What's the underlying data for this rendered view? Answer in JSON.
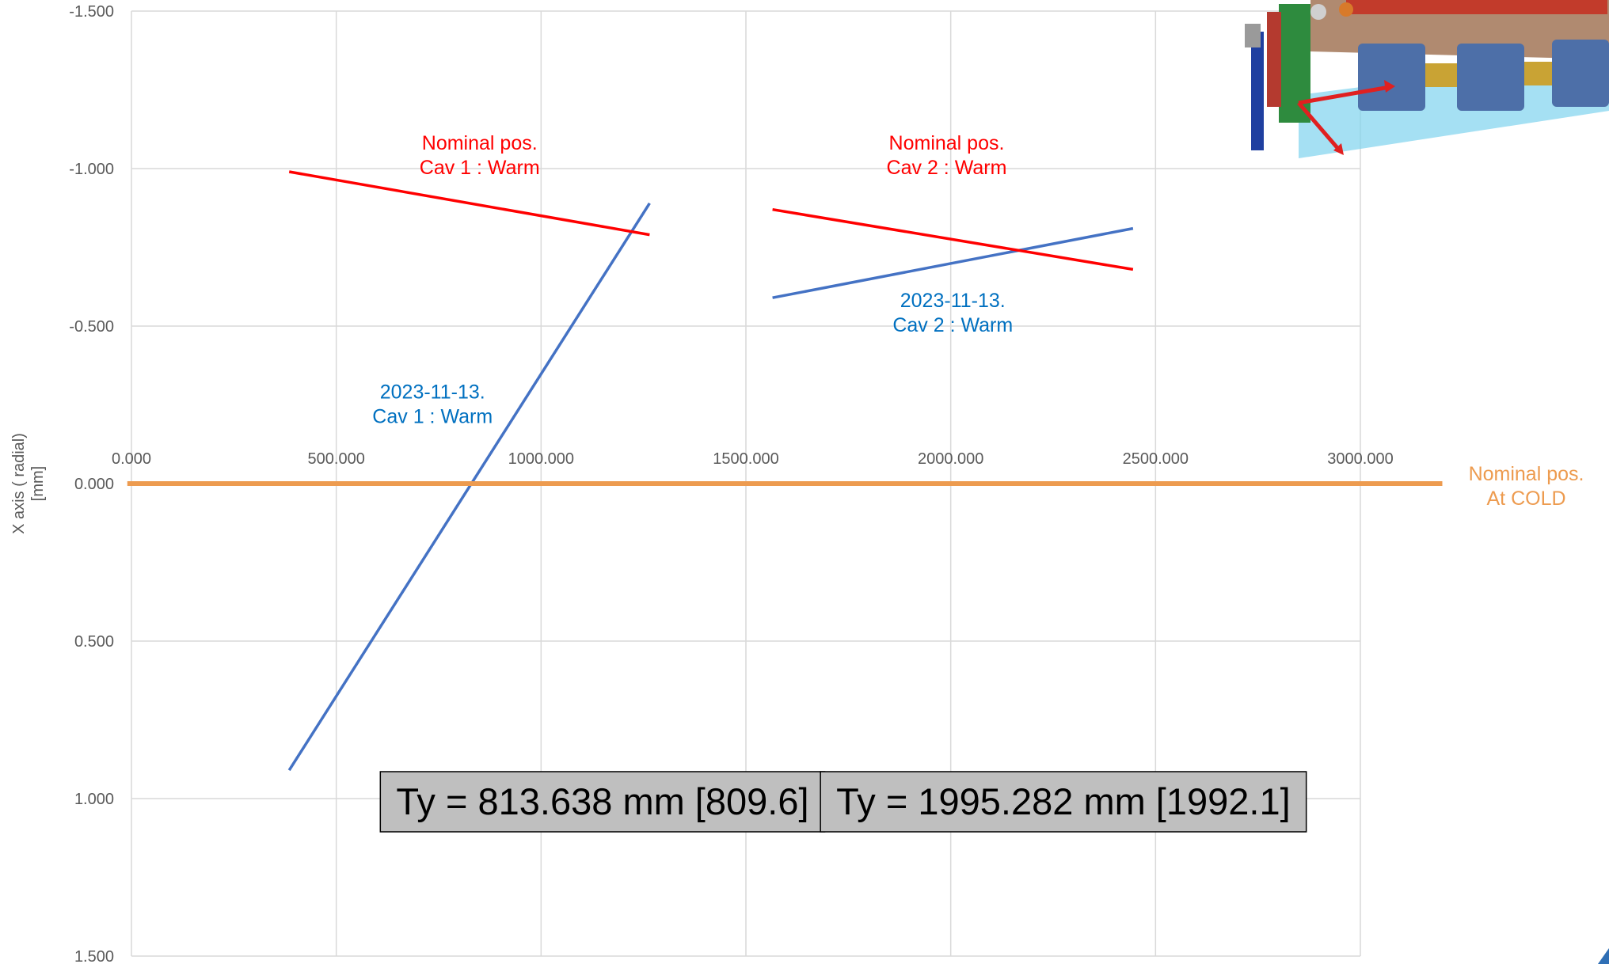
{
  "chart_data": {
    "type": "line",
    "title": "",
    "xlabel": "",
    "ylabel": "X axis ( radial)\n[mm]",
    "xlim": [
      0,
      3000
    ],
    "ylim": [
      1.5,
      -1.5
    ],
    "y_reversed": true,
    "grid": true,
    "legend": "none",
    "x_ticks": [
      "0.000",
      "500.000",
      "1000.000",
      "1500.000",
      "2000.000",
      "2500.000",
      "3000.000"
    ],
    "y_ticks": [
      "-1.500",
      "-1.000",
      "-0.500",
      "0.000",
      "0.500",
      "1.000",
      "1.500"
    ],
    "y_tick_values": [
      -1.5,
      -1.0,
      -0.5,
      0.0,
      0.5,
      1.0,
      1.5
    ],
    "x_tick_values": [
      0,
      500,
      1000,
      1500,
      2000,
      2500,
      3000
    ],
    "series": [
      {
        "color": "#4472C4",
        "points": [
          [
            385,
            0.91
          ],
          [
            1265,
            -0.89
          ]
        ]
      },
      {
        "color": "#4472C4",
        "points": [
          [
            1565,
            -0.59
          ],
          [
            2445,
            -0.81
          ]
        ]
      },
      {
        "color": "#FF0000",
        "points": [
          [
            385,
            -0.99
          ],
          [
            1265,
            -0.79
          ]
        ]
      },
      {
        "color": "#FF0000",
        "points": [
          [
            1565,
            -0.87
          ],
          [
            2445,
            -0.68
          ]
        ]
      },
      {
        "color": "#ED9B4F",
        "points": [
          [
            -10,
            0.0
          ],
          [
            3200,
            0.0
          ]
        ]
      }
    ],
    "annotations": [
      {
        "lines": [
          "Nominal pos.",
          "Cav 1 : Warm"
        ],
        "color": "#FF0000",
        "x": 850,
        "y": -1.06
      },
      {
        "lines": [
          "Nominal pos.",
          "Cav 2 : Warm"
        ],
        "color": "#FF0000",
        "x": 1990,
        "y": -1.06
      },
      {
        "lines": [
          "2023-11-13.",
          "Cav 1 : Warm"
        ],
        "color": "#0070C0",
        "x": 735,
        "y": -0.27
      },
      {
        "lines": [
          "2023-11-13.",
          "Cav 2 : Warm"
        ],
        "color": "#0070C0",
        "x": 2005,
        "y": -0.56
      },
      {
        "lines": [
          "Nominal pos.",
          "At COLD"
        ],
        "color": "#ED9B4F",
        "x": 3405,
        "y": -0.01
      }
    ],
    "boxes": [
      {
        "label": "Ty = 813.638 mm [809.6]",
        "x": 1150,
        "y": 1.01
      },
      {
        "label": "Ty = 1995.282 mm [1992.1]",
        "x": 2275,
        "y": 1.01
      }
    ],
    "colors": {
      "grid": "#D9D9D9",
      "tick_text": "#595959",
      "box_fill": "#BFBFBF",
      "box_border": "#000000"
    }
  }
}
